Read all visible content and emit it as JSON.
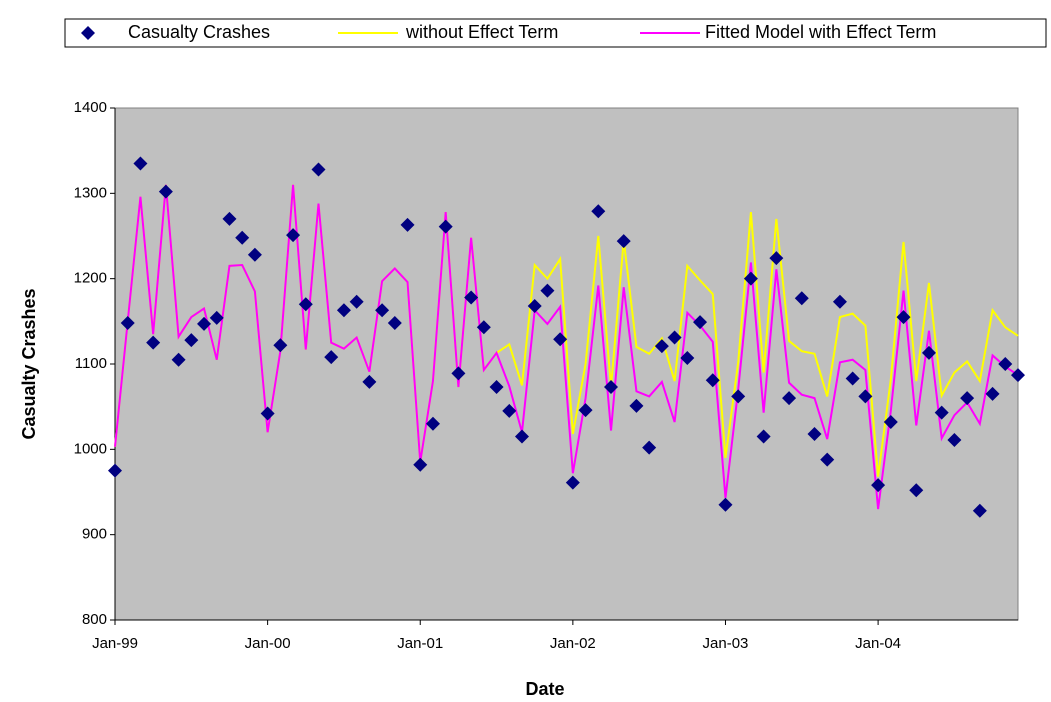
{
  "chart_data": {
    "type": "line",
    "x_label": "Date",
    "y_label": "Casualty Crashes",
    "categories": [
      "Jan-99",
      null,
      null,
      null,
      null,
      null,
      null,
      null,
      null,
      null,
      null,
      null,
      "Jan-00",
      null,
      null,
      null,
      null,
      null,
      null,
      null,
      null,
      null,
      null,
      null,
      "Jan-01",
      null,
      null,
      null,
      null,
      null,
      null,
      null,
      null,
      null,
      null,
      null,
      "Jan-02",
      null,
      null,
      null,
      null,
      null,
      null,
      null,
      null,
      null,
      null,
      null,
      "Jan-03",
      null,
      null,
      null,
      null,
      null,
      null,
      null,
      null,
      null,
      null,
      null,
      "Jan-04",
      null,
      null,
      null,
      null,
      null,
      null,
      null,
      null,
      null,
      null,
      null
    ],
    "series": [
      {
        "name": "Casualty Crashes",
        "color": "#000080",
        "style": "markers",
        "values": [
          975,
          1148,
          1335,
          1125,
          1302,
          1105,
          1128,
          1147,
          1154,
          1270,
          1248,
          1228,
          1042,
          1122,
          1251,
          1170,
          1328,
          1108,
          1163,
          1173,
          1079,
          1163,
          1148,
          1263,
          982,
          1030,
          1261,
          1089,
          1178,
          1143,
          1073,
          1045,
          1015,
          1168,
          1186,
          1129,
          961,
          1046,
          1279,
          1073,
          1244,
          1051,
          1002,
          1121,
          1131,
          1107,
          1149,
          1081,
          935,
          1062,
          1200,
          1015,
          1224,
          1060,
          1177,
          1018,
          988,
          1173,
          1083,
          1062,
          958,
          1032,
          1155,
          952,
          1113,
          1043,
          1011,
          1060,
          928,
          1065,
          1100,
          1087
        ]
      },
      {
        "name": "without Effect Term",
        "color": "#ffff00",
        "style": "line",
        "values": [
          1003,
          1150,
          1296,
          1135,
          1310,
          1132,
          1155,
          1165,
          1105,
          1215,
          1216,
          1185,
          1020,
          1115,
          1310,
          1117,
          1288,
          1125,
          1118,
          1131,
          1091,
          1197,
          1212,
          1196,
          985,
          1080,
          1278,
          1073,
          1248,
          1093,
          1113,
          1123,
          1075,
          1216,
          1200,
          1223,
          1018,
          1100,
          1250,
          1073,
          1245,
          1120,
          1112,
          1130,
          1080,
          1215,
          1198,
          1182,
          990,
          1102,
          1278,
          1090,
          1270,
          1127,
          1115,
          1112,
          1062,
          1155,
          1159,
          1145,
          968,
          1082,
          1243,
          1080,
          1195,
          1063,
          1090,
          1103,
          1080,
          1163,
          1143,
          1133
        ]
      },
      {
        "name": "Fitted Model with Effect Term",
        "color": "#ff00ff",
        "style": "line",
        "values": [
          1003,
          1150,
          1296,
          1135,
          1310,
          1132,
          1155,
          1165,
          1105,
          1215,
          1216,
          1185,
          1020,
          1115,
          1310,
          1117,
          1288,
          1125,
          1118,
          1131,
          1091,
          1197,
          1212,
          1196,
          985,
          1080,
          1278,
          1073,
          1248,
          1093,
          1113,
          1074,
          1020,
          1163,
          1147,
          1167,
          972,
          1060,
          1192,
          1022,
          1190,
          1068,
          1062,
          1079,
          1032,
          1160,
          1145,
          1126,
          943,
          1070,
          1219,
          1043,
          1211,
          1078,
          1064,
          1060,
          1012,
          1102,
          1105,
          1093,
          930,
          1045,
          1186,
          1028,
          1139,
          1013,
          1040,
          1055,
          1030,
          1110,
          1097,
          1087
        ]
      }
    ],
    "ylim": [
      800,
      1400
    ],
    "yticks": [
      800,
      900,
      1000,
      1100,
      1200,
      1300,
      1400
    ],
    "plot_background": "#c0c0c0",
    "legend": "top"
  }
}
